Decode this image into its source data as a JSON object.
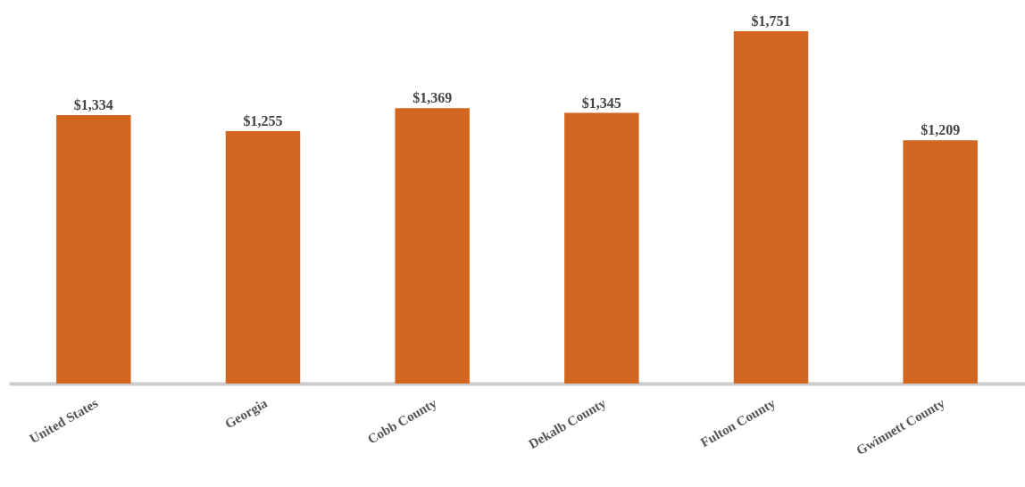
{
  "chart_data": {
    "type": "bar",
    "categories": [
      "United States",
      "Georgia",
      "Cobb County",
      "Dekalb County",
      "Fulton County",
      "Gwinnett County"
    ],
    "values": [
      1334,
      1255,
      1369,
      1345,
      1751,
      1209
    ],
    "value_labels": [
      "$1,334",
      "$1,255",
      "$1,369",
      "$1,345",
      "$1,751",
      "$1,209"
    ],
    "color": "#d0661f"
  }
}
